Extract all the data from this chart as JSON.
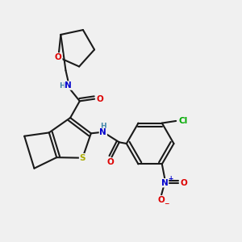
{
  "background_color": "#f0f0f0",
  "bond_color": "#1a1a1a",
  "bond_lw": 1.5,
  "atom_colors": {
    "O": "#dd0000",
    "N": "#0000cc",
    "S": "#aaaa00",
    "Cl": "#00aa00",
    "H": "#4488aa"
  },
  "figsize": [
    3.0,
    3.0
  ],
  "dpi": 100
}
